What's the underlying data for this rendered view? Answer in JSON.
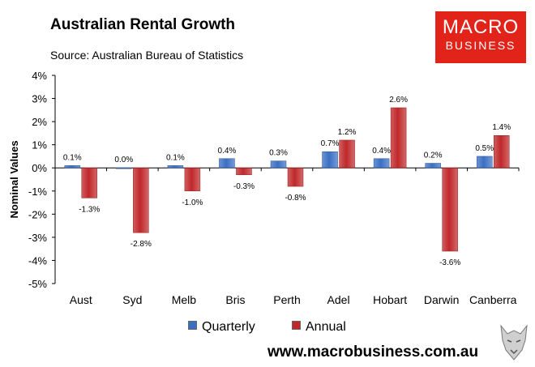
{
  "header": {
    "title": "Australian Rental Growth",
    "subtitle": "Source: Australian Bureau of Statistics"
  },
  "logo": {
    "line1": "MACRO",
    "line2": "BUSINESS"
  },
  "footer": {
    "website": "www.macrobusiness.com.au"
  },
  "colors": {
    "quarterly": "#3a6fc4",
    "annual": "#c0282a",
    "logo_bg": "#e2231a"
  },
  "chart_data": {
    "type": "bar",
    "ylabel": "Nominal Values",
    "ylim": [
      -5,
      4
    ],
    "yticks": [
      "4%",
      "3%",
      "2%",
      "1%",
      "0%",
      "-1%",
      "-2%",
      "-3%",
      "-4%",
      "-5%"
    ],
    "categories": [
      "Aust",
      "Syd",
      "Melb",
      "Bris",
      "Perth",
      "Adel",
      "Hobart",
      "Darwin",
      "Canberra"
    ],
    "series": [
      {
        "name": "Quarterly",
        "values": [
          0.1,
          0.0,
          0.1,
          0.4,
          0.3,
          0.7,
          0.4,
          0.2,
          0.5
        ],
        "labels": [
          "0.1%",
          "0.0%",
          "0.1%",
          "0.4%",
          "0.3%",
          "0.7%",
          "0.4%",
          "0.2%",
          "0.5%"
        ]
      },
      {
        "name": "Annual",
        "values": [
          -1.3,
          -2.8,
          -1.0,
          -0.3,
          -0.8,
          1.2,
          2.6,
          -3.6,
          1.4
        ],
        "labels": [
          "-1.3%",
          "-2.8%",
          "-1.0%",
          "-0.3%",
          "-0.8%",
          "1.2%",
          "2.6%",
          "-3.6%",
          "1.4%"
        ]
      }
    ],
    "legend_position": "bottom"
  }
}
